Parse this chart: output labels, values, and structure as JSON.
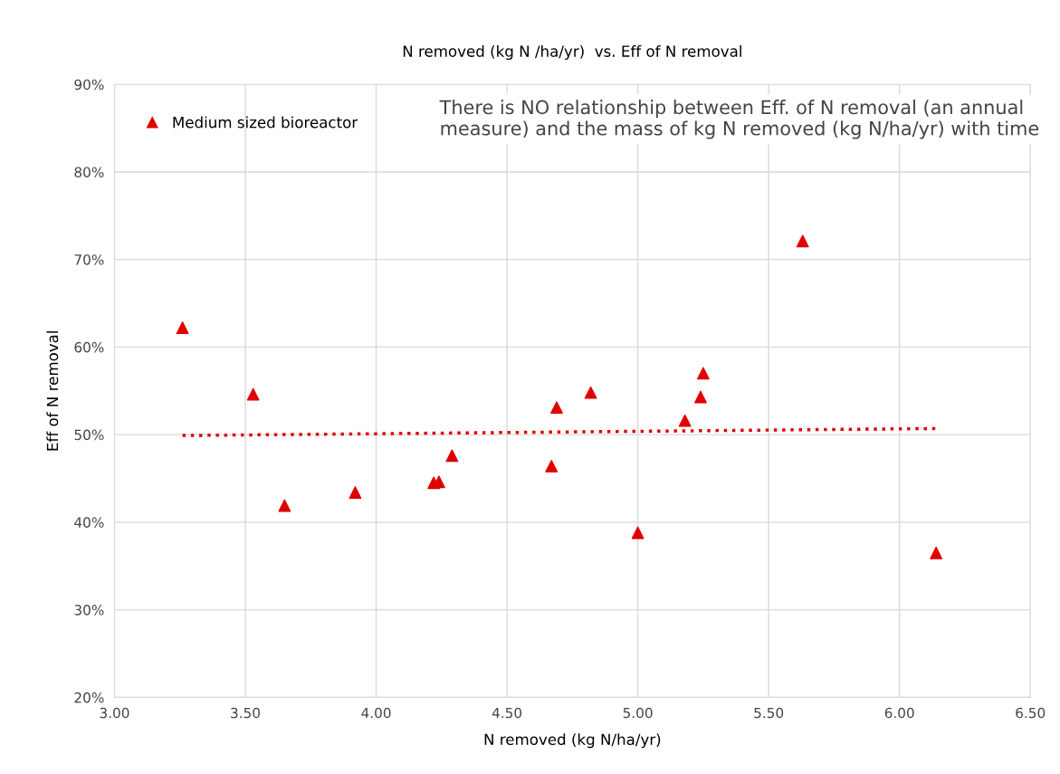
{
  "chart_data": {
    "type": "scatter",
    "title": "N removed (kg N /ha/yr)  vs. Eff of N removal",
    "xlabel": "N removed (kg N/ha/yr)",
    "ylabel": "Eff of N removal",
    "annotations": [
      "There is NO relationship between Eff. of N removal (an annual measure) and the mass of kg N removed (kg N/ha/yr) with time"
    ],
    "series": [
      {
        "name": "Medium sized bioreactor",
        "color": "#e00000",
        "marker": "triangle",
        "x": [
          3.26,
          3.53,
          3.65,
          3.92,
          4.22,
          4.24,
          4.29,
          4.67,
          4.69,
          4.82,
          5.0,
          5.18,
          5.24,
          5.25,
          5.63,
          6.14
        ],
        "values": [
          62.2,
          54.6,
          41.9,
          43.4,
          44.5,
          44.6,
          47.6,
          46.4,
          53.1,
          54.8,
          38.8,
          51.6,
          54.3,
          57.0,
          72.1,
          36.5
        ]
      },
      {
        "type": "line",
        "color": "#e00000",
        "line_style": "dotted",
        "marker": "none",
        "x": [
          3.26,
          6.14
        ],
        "values": [
          49.9,
          50.7
        ]
      }
    ],
    "xlim": [
      3.0,
      6.5
    ],
    "xticks": [
      {
        "value": 3.0,
        "label": "3.00"
      },
      {
        "value": 3.5,
        "label": "3.50"
      },
      {
        "value": 4.0,
        "label": "4.00"
      },
      {
        "value": 4.5,
        "label": "4.50"
      },
      {
        "value": 5.0,
        "label": "5.00"
      },
      {
        "value": 5.5,
        "label": "5.50"
      },
      {
        "value": 6.0,
        "label": "6.00"
      },
      {
        "value": 6.5,
        "label": "6.50"
      }
    ],
    "ylim": [
      20,
      90
    ],
    "yticks": [
      {
        "value": 20,
        "label": "20%"
      },
      {
        "value": 30,
        "label": "30%"
      },
      {
        "value": 40,
        "label": "40%"
      },
      {
        "value": 50,
        "label": "50%"
      },
      {
        "value": 60,
        "label": "60%"
      },
      {
        "value": 70,
        "label": "70%"
      },
      {
        "value": 80,
        "label": "80%"
      },
      {
        "value": 90,
        "label": "90%"
      }
    ],
    "grid": true,
    "legend": "top left"
  }
}
